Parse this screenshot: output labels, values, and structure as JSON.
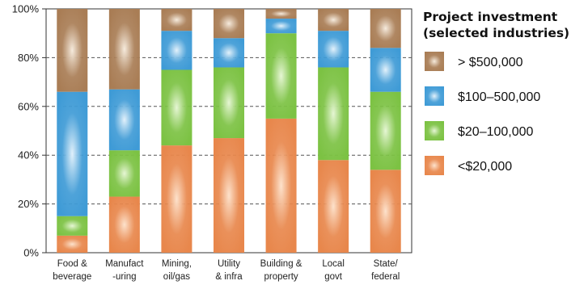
{
  "chart_data": {
    "type": "bar",
    "stacked": true,
    "percent": true,
    "categories": [
      [
        "Food &",
        "beverage"
      ],
      [
        "Manufact",
        "-uring"
      ],
      [
        "Mining,",
        "oil/gas"
      ],
      [
        "Utility",
        "& infra"
      ],
      [
        "Building &",
        "property"
      ],
      [
        "Local",
        "govt"
      ],
      [
        "State/",
        "federal"
      ]
    ],
    "series": [
      {
        "name": "<$20,000",
        "color": "#e8874c",
        "glow": "#fde2cc",
        "values": [
          7,
          23,
          44,
          47,
          55,
          38,
          34
        ]
      },
      {
        "name": "$20–100,000",
        "color": "#7cc243",
        "glow": "#e6f6d4",
        "values": [
          8,
          19,
          31,
          29,
          35,
          38,
          32
        ]
      },
      {
        "name": "$100–500,000",
        "color": "#3f9bd6",
        "glow": "#e2f1fb",
        "values": [
          51,
          25,
          16,
          12,
          6,
          15,
          18
        ]
      },
      {
        "name": "> $500,000",
        "color": "#a97d55",
        "glow": "#f6ebdd",
        "values": [
          34,
          33,
          9,
          12,
          4,
          9,
          16
        ]
      }
    ],
    "yticks": [
      "0%",
      "20%",
      "40%",
      "60%",
      "80%",
      "100%"
    ],
    "ylim": [
      0,
      100
    ],
    "legend": {
      "title": [
        "Project investment",
        "(selected industries)"
      ],
      "order": [
        "> $500,000",
        "$100–500,000",
        "$20–100,000",
        "<$20,000"
      ],
      "placement": "right"
    }
  }
}
